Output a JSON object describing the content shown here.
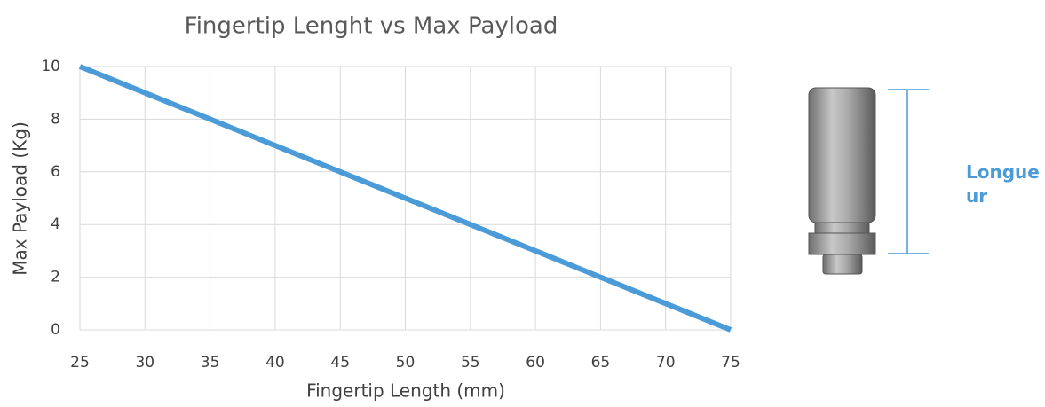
{
  "chart_data": {
    "type": "line",
    "title": "Fingertip Lenght vs Max Payload",
    "x_label": "Fingertip Length (mm)",
    "y_label": "Max Payload (Kg)",
    "x": [
      25,
      30,
      35,
      40,
      45,
      50,
      55,
      60,
      65,
      70,
      75
    ],
    "series": [
      {
        "name": "Max Payload",
        "color": "#4a9bd8",
        "values": [
          10,
          9,
          8,
          7,
          6,
          5,
          4,
          3,
          2,
          1,
          0
        ]
      }
    ],
    "xlim": [
      25,
      75
    ],
    "xticks": [
      25,
      30,
      35,
      40,
      45,
      50,
      55,
      60,
      65,
      70,
      75
    ],
    "ylim": [
      0,
      10
    ],
    "yticks": [
      0,
      2,
      4,
      6,
      8,
      10
    ],
    "grid": true,
    "annotation": "Longueur"
  }
}
